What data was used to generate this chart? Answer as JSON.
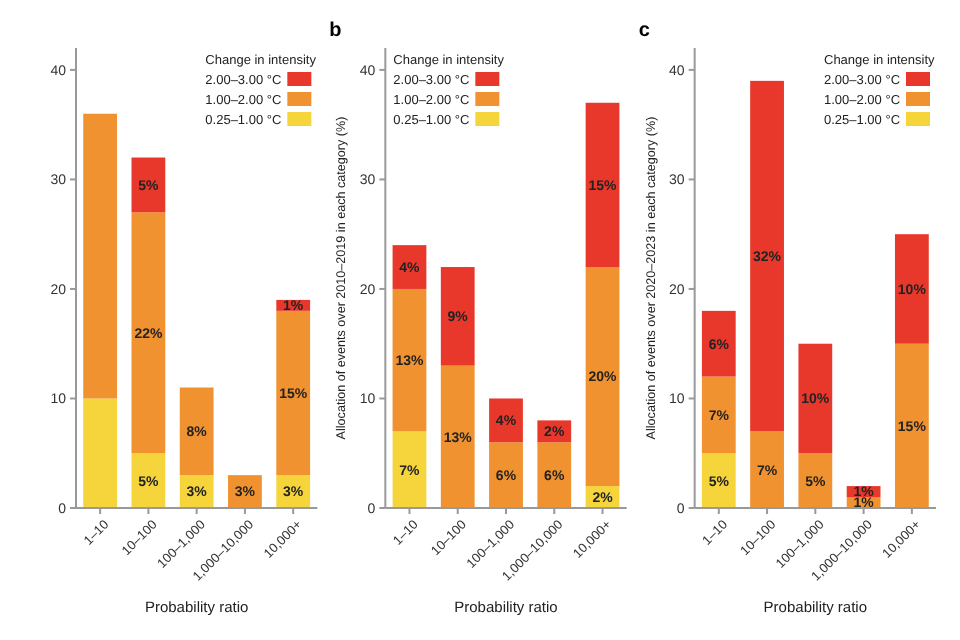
{
  "chart_data": [
    {
      "type": "bar",
      "stacked": true,
      "xlabel": "Probability ratio",
      "categories": [
        "1–10",
        "10–100",
        "100–1,000",
        "1,000–10,000",
        "10,000+"
      ],
      "ylim": [
        0,
        42
      ],
      "yticks": [
        0,
        10,
        20,
        30,
        40
      ],
      "legend": "top right",
      "legend_title": "Change in intensity",
      "series": [
        {
          "name": "0.25–1.00 °C",
          "color": "#f6d43c",
          "values": [
            10,
            5,
            3,
            null,
            3
          ],
          "value_labels": [
            null,
            "5%",
            "3%",
            null,
            "3%"
          ]
        },
        {
          "name": "1.00–2.00 °C",
          "color": "#f0922f",
          "values": [
            26,
            22,
            8,
            3,
            15
          ],
          "value_labels": [
            null,
            "22%",
            "8%",
            "3%",
            "15%"
          ]
        },
        {
          "name": "2.00–3.00 °C",
          "color": "#e8382b",
          "values": [
            null,
            5,
            null,
            null,
            1
          ],
          "value_labels": [
            null,
            "5%",
            null,
            null,
            "1%"
          ]
        }
      ]
    },
    {
      "type": "bar",
      "stacked": true,
      "title": "b",
      "xlabel": "Probability ratio",
      "ylabel": "Allocation of events over 2010–2019 in each category (%)",
      "categories": [
        "1–10",
        "10–100",
        "100–1,000",
        "1,000–10,000",
        "10,000+"
      ],
      "ylim": [
        0,
        42
      ],
      "yticks": [
        0,
        10,
        20,
        30,
        40
      ],
      "legend": "top left",
      "legend_title": "Change in intensity",
      "series": [
        {
          "name": "0.25–1.00 °C",
          "color": "#f6d43c",
          "values": [
            7,
            null,
            null,
            null,
            2
          ],
          "value_labels": [
            "7%",
            null,
            null,
            null,
            "2%"
          ]
        },
        {
          "name": "1.00–2.00 °C",
          "color": "#f0922f",
          "values": [
            13,
            13,
            6,
            6,
            20
          ],
          "value_labels": [
            "13%",
            "13%",
            "6%",
            "6%",
            "20%"
          ]
        },
        {
          "name": "2.00–3.00 °C",
          "color": "#e8382b",
          "values": [
            4,
            9,
            4,
            2,
            15
          ],
          "value_labels": [
            "4%",
            "9%",
            "4%",
            "2%",
            "15%"
          ]
        }
      ]
    },
    {
      "type": "bar",
      "stacked": true,
      "title": "c",
      "xlabel": "Probability ratio",
      "ylabel": "Allocation of events over 2020–2023 in each category (%)",
      "categories": [
        "1–10",
        "10–100",
        "100–1,000",
        "1,000–10,000",
        "10,000+"
      ],
      "ylim": [
        0,
        42
      ],
      "yticks": [
        0,
        10,
        20,
        30,
        40
      ],
      "legend": "top right",
      "legend_title": "Change in intensity",
      "series": [
        {
          "name": "0.25–1.00 °C",
          "color": "#f6d43c",
          "values": [
            5,
            null,
            null,
            null,
            null
          ],
          "value_labels": [
            "5%",
            null,
            null,
            null,
            null
          ]
        },
        {
          "name": "1.00–2.00 °C",
          "color": "#f0922f",
          "values": [
            7,
            7,
            5,
            1,
            15
          ],
          "value_labels": [
            "7%",
            "7%",
            "5%",
            "1%",
            "15%"
          ]
        },
        {
          "name": "2.00–3.00 °C",
          "color": "#e8382b",
          "values": [
            6,
            32,
            10,
            1,
            10
          ],
          "value_labels": [
            "6%",
            "32%",
            "10%",
            "1%",
            "10%"
          ]
        }
      ]
    }
  ]
}
